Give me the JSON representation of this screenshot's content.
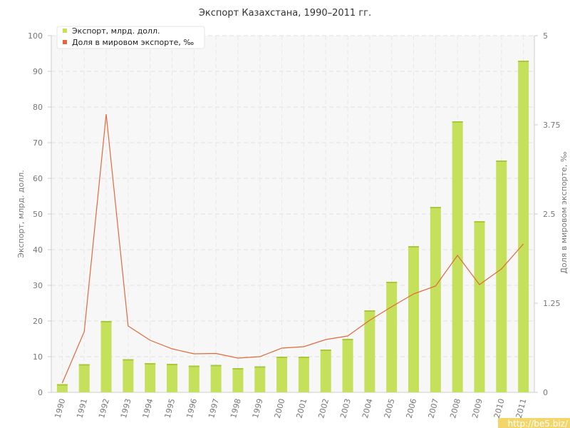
{
  "chart_data": {
    "type": "bar",
    "title": "Экспорт Казахстана, 1990–2011 гг.",
    "categories": [
      "1990",
      "1991",
      "1992",
      "1993",
      "1994",
      "1995",
      "1996",
      "1997",
      "1998",
      "1999",
      "2000",
      "2001",
      "2002",
      "2003",
      "2004",
      "2005",
      "2006",
      "2007",
      "2008",
      "2009",
      "2010",
      "2011"
    ],
    "series": [
      {
        "name": "Экспорт, млрд. долл.",
        "type": "bar",
        "axis": "left",
        "color": "#c5e05a",
        "values": [
          2.3,
          7.9,
          20.0,
          9.3,
          8.2,
          8.0,
          7.5,
          7.7,
          6.8,
          7.3,
          10.0,
          10.0,
          12.0,
          15.0,
          23.0,
          31.0,
          41.0,
          52.0,
          76.0,
          48.0,
          65.0,
          93.0
        ]
      },
      {
        "name": "Доля в мировом экспорте, ‰",
        "type": "line",
        "axis": "right",
        "color": "#e06a3b",
        "values": [
          0.13,
          0.85,
          3.9,
          0.93,
          0.73,
          0.61,
          0.54,
          0.545,
          0.48,
          0.5,
          0.62,
          0.64,
          0.74,
          0.79,
          1.01,
          1.2,
          1.38,
          1.49,
          1.92,
          1.51,
          1.73,
          2.08
        ]
      }
    ],
    "ylabel": "Экспорт, млрд. долл.",
    "ylabel_right": "Доля в мировом экспорте, ‰",
    "ylim": [
      0,
      100
    ],
    "ylim_right": [
      0,
      5
    ],
    "yticks": [
      "0",
      "10",
      "20",
      "30",
      "40",
      "50",
      "60",
      "70",
      "80",
      "90",
      "100"
    ],
    "yticks_right": [
      "0",
      "1.25",
      "2.5",
      "3.75",
      "5"
    ],
    "grid": true,
    "legend_position": "top-left"
  },
  "watermark": "http://be5.biz/"
}
